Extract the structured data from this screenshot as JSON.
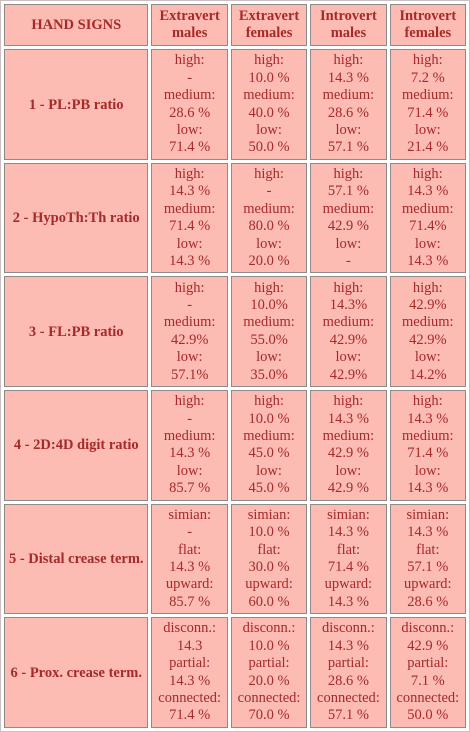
{
  "header": {
    "first": "HAND SIGNS",
    "groups": [
      [
        "Extravert",
        "males"
      ],
      [
        "Extravert",
        "females"
      ],
      [
        "Introvert",
        "males"
      ],
      [
        "Introvert",
        "females"
      ]
    ]
  },
  "rows": [
    {
      "name": "1 - PL:PB ratio",
      "cells": [
        [
          "high:",
          "-",
          "medium:",
          "28.6 %",
          "low:",
          "71.4 %"
        ],
        [
          "high:",
          "10.0 %",
          "medium:",
          "40.0 %",
          "low:",
          "50.0 %"
        ],
        [
          "high:",
          "14.3 %",
          "medium:",
          "28.6 %",
          "low:",
          "57.1 %"
        ],
        [
          "high:",
          "7.2 %",
          "medium:",
          "71.4 %",
          "low:",
          "21.4 %"
        ]
      ]
    },
    {
      "name": "2 - HypoTh:Th ratio",
      "cells": [
        [
          "high:",
          "14.3 %",
          "medium:",
          "71.4 %",
          "low:",
          "14.3 %"
        ],
        [
          "high:",
          "-",
          "medium:",
          "80.0 %",
          "low:",
          "20.0 %"
        ],
        [
          "high:",
          "57.1 %",
          "medium:",
          "42.9 %",
          "low:",
          "-"
        ],
        [
          "high:",
          "14.3 %",
          "medium:",
          "71.4%",
          "low:",
          "14.3 %"
        ]
      ]
    },
    {
      "name": "3 - FL:PB ratio",
      "cells": [
        [
          "high:",
          "-",
          "medium:",
          "42.9%",
          "low:",
          "57.1%"
        ],
        [
          "high:",
          "10.0%",
          "medium:",
          "55.0%",
          "low:",
          "35.0%"
        ],
        [
          "high:",
          "14.3%",
          "medium:",
          "42.9%",
          "low:",
          "42.9%"
        ],
        [
          "high:",
          "42.9%",
          "medium:",
          "42.9%",
          "low:",
          "14.2%"
        ]
      ]
    },
    {
      "name": "4 - 2D:4D digit ratio",
      "cells": [
        [
          "high:",
          "-",
          "medium:",
          "14.3 %",
          "low:",
          "85.7 %"
        ],
        [
          "high:",
          "10.0 %",
          "medium:",
          "45.0 %",
          "low:",
          "45.0 %"
        ],
        [
          "high:",
          "14.3 %",
          "medium:",
          "42.9 %",
          "low:",
          "42.9 %"
        ],
        [
          "high:",
          "14.3 %",
          "medium:",
          "71.4 %",
          "low:",
          "14.3 %"
        ]
      ]
    },
    {
      "name": "5 - Distal crease term.",
      "cells": [
        [
          "simian:",
          "-",
          "flat:",
          "14.3 %",
          "upward:",
          "85.7 %"
        ],
        [
          "simian:",
          "10.0 %",
          "flat:",
          "30.0 %",
          "upward:",
          "60.0 %"
        ],
        [
          "simian:",
          "14.3 %",
          "flat:",
          "71.4 %",
          "upward:",
          "14.3 %"
        ],
        [
          "simian:",
          "14.3 %",
          "flat:",
          "57.1 %",
          "upward:",
          "28.6 %"
        ]
      ]
    },
    {
      "name": "6 - Prox. crease term.",
      "cells": [
        [
          "disconn.:",
          "14.3",
          "partial:",
          "14.3 %",
          "connected:",
          "71.4 %"
        ],
        [
          "disconn.:",
          "10.0 %",
          "partial:",
          "20.0 %",
          "connected:",
          "70.0 %"
        ],
        [
          "disconn.:",
          "14.3 %",
          "partial:",
          "28.6 %",
          "connected:",
          "57.1 %"
        ],
        [
          "disconn.:",
          "42.9 %",
          "partial:",
          "7.1 %",
          "connected:",
          "50.0 %"
        ]
      ]
    }
  ]
}
